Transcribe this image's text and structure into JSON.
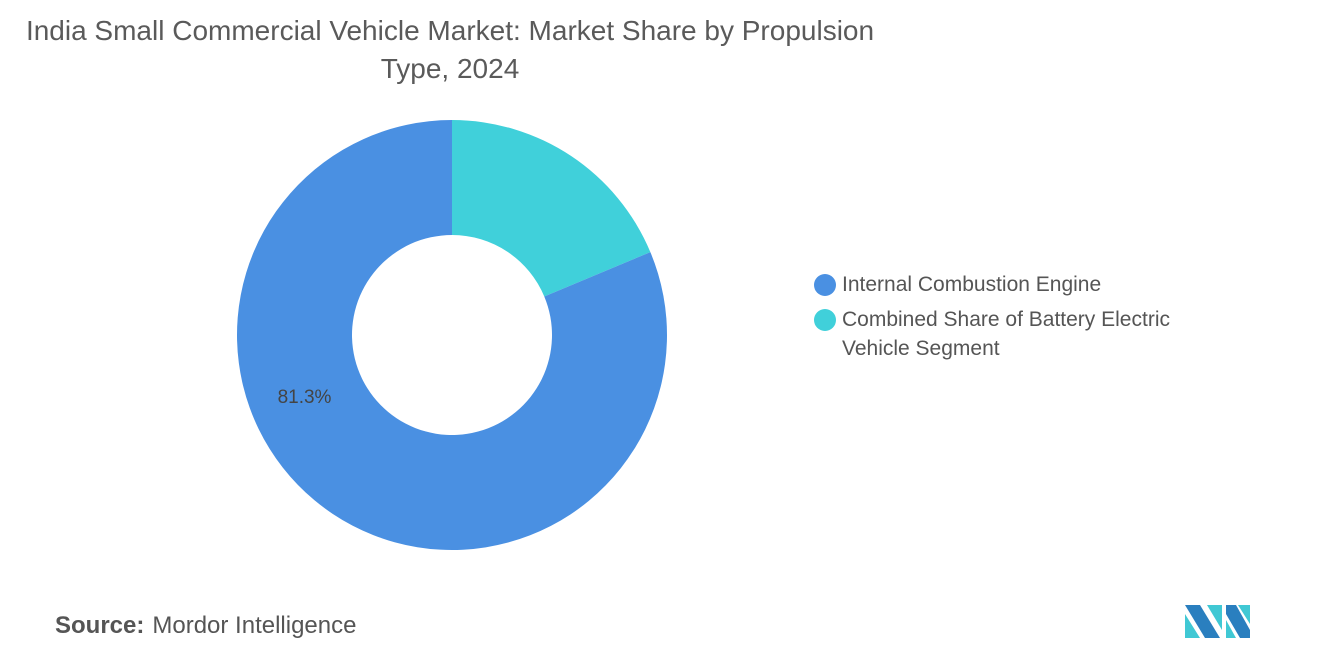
{
  "chart_data": {
    "type": "pie",
    "title": "India Small Commercial Vehicle Market: Market Share by Propulsion Type, 2024",
    "donut": true,
    "series": [
      {
        "name": "Internal Combustion Engine",
        "value": 81.3,
        "color": "#4a90e2",
        "label": "81.3%"
      },
      {
        "name": "Combined Share of Battery Electric Vehicle Segment",
        "value": 18.7,
        "color": "#40d0da",
        "label": ""
      }
    ],
    "legend_position": "right"
  },
  "source": {
    "label": "Source:",
    "text": "Mordor Intelligence"
  },
  "logo": {
    "text": "Mordor Intelligence"
  }
}
